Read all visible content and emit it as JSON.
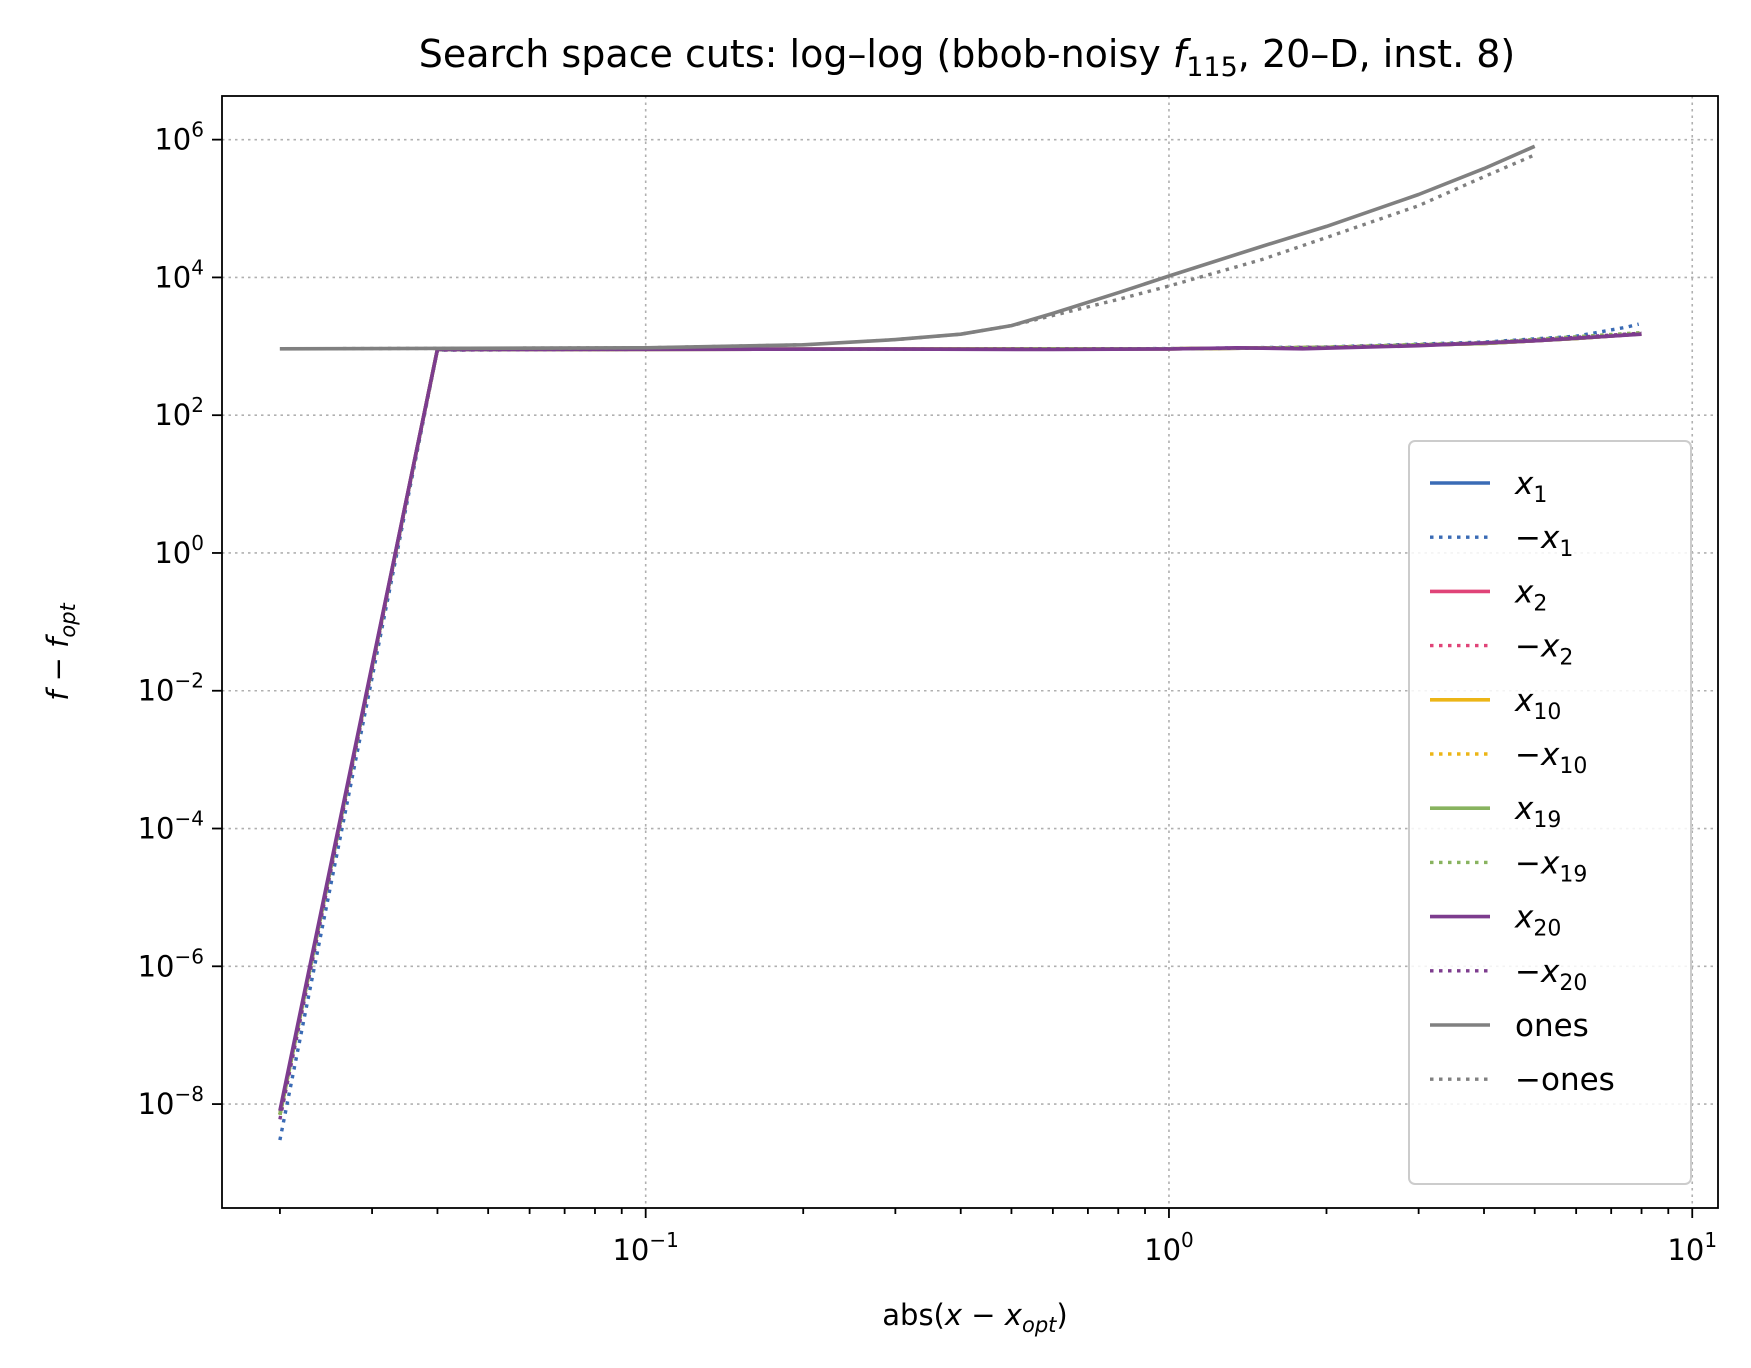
{
  "chart_data": {
    "type": "line",
    "title": "Search space cuts: log–log (bbob-noisy f115, 20–D, inst. 8)",
    "title_parts": {
      "prefix": "Search space cuts: log–log (bbob-noisy ",
      "func_italic": "f",
      "func_sub": "115",
      "suffix": ", 20–D, inst. 8)"
    },
    "xlabel": "abs(x − x_opt)",
    "ylabel": "f − f_opt",
    "xscale": "log",
    "yscale": "log",
    "xlim": [
      0.0155,
      11.2
    ],
    "ylim": [
      3.1e-10,
      4300000.0
    ],
    "grid": true,
    "legend_position": "lower-right",
    "x_ticks": [
      {
        "value": 0.1,
        "base": "10",
        "exp": "−1"
      },
      {
        "value": 1,
        "base": "10",
        "exp": "0"
      },
      {
        "value": 10,
        "base": "10",
        "exp": "1"
      }
    ],
    "y_ticks": [
      {
        "value": 1e-08,
        "base": "10",
        "exp": "−8"
      },
      {
        "value": 1e-06,
        "base": "10",
        "exp": "−6"
      },
      {
        "value": 0.0001,
        "base": "10",
        "exp": "−4"
      },
      {
        "value": 0.01,
        "base": "10",
        "exp": "−2"
      },
      {
        "value": 1,
        "base": "10",
        "exp": "0"
      },
      {
        "value": 100,
        "base": "10",
        "exp": "2"
      },
      {
        "value": 10000,
        "base": "10",
        "exp": "4"
      },
      {
        "value": 1000000,
        "base": "10",
        "exp": "6"
      }
    ],
    "series": [
      {
        "name": "x1",
        "label_sign": "",
        "label_sub": "1",
        "color": "#3a6bb5",
        "style": "solid",
        "x": [
          0.02,
          0.04,
          0.1,
          0.3,
          1.0,
          2.0,
          4.0,
          6.0,
          8.0
        ],
        "y": [
          7e-09,
          900,
          905,
          910,
          920,
          960,
          1100,
          1300,
          1520
        ]
      },
      {
        "name": "-x1",
        "label_sign": "−",
        "label_sub": "1",
        "color": "#3a6bb5",
        "style": "dotted",
        "x": [
          0.02,
          0.04,
          0.1,
          0.3,
          1.0,
          2.0,
          4.0,
          6.0,
          7.5,
          7.9
        ],
        "y": [
          3e-09,
          880,
          905,
          910,
          925,
          980,
          1150,
          1400,
          1900,
          2100
        ]
      },
      {
        "name": "x2",
        "label_sign": "",
        "label_sub": "2",
        "color": "#e04478",
        "style": "solid",
        "x": [
          0.02,
          0.04,
          0.1,
          0.3,
          1.0,
          2.0,
          4.0,
          6.0,
          8.0
        ],
        "y": [
          7e-09,
          900,
          905,
          910,
          920,
          960,
          1100,
          1300,
          1520
        ]
      },
      {
        "name": "-x2",
        "label_sign": "−",
        "label_sub": "2",
        "color": "#e04478",
        "style": "dotted",
        "x": [
          0.02,
          0.04,
          0.1,
          0.3,
          1.0,
          2.0,
          4.0,
          6.0,
          8.0
        ],
        "y": [
          7e-09,
          890,
          905,
          910,
          920,
          965,
          1120,
          1350,
          1550
        ]
      },
      {
        "name": "x10",
        "label_sign": "",
        "label_sub": "10",
        "color": "#ecb516",
        "style": "solid",
        "x": [
          0.02,
          0.04,
          0.1,
          0.3,
          1.0,
          2.0,
          4.0,
          6.0,
          8.0
        ],
        "y": [
          7e-09,
          900,
          905,
          910,
          920,
          960,
          1100,
          1300,
          1520
        ]
      },
      {
        "name": "-x10",
        "label_sign": "−",
        "label_sub": "10",
        "color": "#ecb516",
        "style": "dotted",
        "x": [
          0.02,
          0.04,
          0.1,
          0.3,
          1.0,
          2.0,
          4.0,
          6.0,
          8.0
        ],
        "y": [
          7e-09,
          890,
          905,
          910,
          920,
          970,
          1120,
          1350,
          1560
        ]
      },
      {
        "name": "x19",
        "label_sign": "",
        "label_sub": "19",
        "color": "#88b35f",
        "style": "solid",
        "x": [
          0.02,
          0.04,
          0.1,
          0.3,
          1.0,
          2.0,
          4.0,
          6.0,
          8.0
        ],
        "y": [
          7e-09,
          900,
          905,
          910,
          920,
          960,
          1100,
          1300,
          1520
        ]
      },
      {
        "name": "-x19",
        "label_sign": "−",
        "label_sub": "19",
        "color": "#88b35f",
        "style": "dotted",
        "x": [
          0.02,
          0.04,
          0.1,
          0.3,
          1.0,
          2.0,
          4.0,
          6.0,
          8.0
        ],
        "y": [
          7e-09,
          890,
          905,
          910,
          920,
          970,
          1130,
          1380,
          1580
        ]
      },
      {
        "name": "x20",
        "label_sign": "",
        "label_sub": "20",
        "color": "#7d3c8e",
        "style": "solid",
        "x": [
          0.02,
          0.04,
          0.1,
          0.3,
          0.6,
          1.0,
          1.35,
          1.8,
          3.0,
          5.0,
          8.0
        ],
        "y": [
          8e-09,
          900,
          905,
          910,
          900,
          915,
          950,
          920,
          1020,
          1200,
          1500
        ]
      },
      {
        "name": "-x20",
        "label_sign": "−",
        "label_sub": "20",
        "color": "#7d3c8e",
        "style": "dotted",
        "x": [
          0.02,
          0.04,
          0.1,
          0.3,
          1.0,
          2.0,
          4.0,
          6.0,
          8.0
        ],
        "y": [
          6e-09,
          880,
          905,
          910,
          920,
          965,
          1120,
          1350,
          1550
        ]
      },
      {
        "name": "ones",
        "label_text": "ones",
        "color": "#808080",
        "style": "solid",
        "x": [
          0.02,
          0.1,
          0.2,
          0.3,
          0.4,
          0.5,
          0.6,
          0.8,
          1.0,
          1.5,
          2.0,
          3.0,
          4.0,
          5.0
        ],
        "y": [
          920,
          950,
          1050,
          1250,
          1500,
          2000,
          3000,
          6000,
          10500,
          28000,
          55000,
          160000,
          380000,
          800000
        ]
      },
      {
        "name": "-ones",
        "label_sign": "−",
        "label_text": "ones",
        "color": "#808080",
        "style": "dotted",
        "x": [
          0.02,
          0.1,
          0.2,
          0.3,
          0.4,
          0.5,
          0.6,
          0.8,
          1.0,
          1.5,
          2.0,
          3.0,
          4.0,
          5.0
        ],
        "y": [
          920,
          950,
          1050,
          1250,
          1500,
          2000,
          2800,
          4800,
          7500,
          18000,
          38000,
          110000,
          290000,
          600000
        ]
      }
    ]
  }
}
